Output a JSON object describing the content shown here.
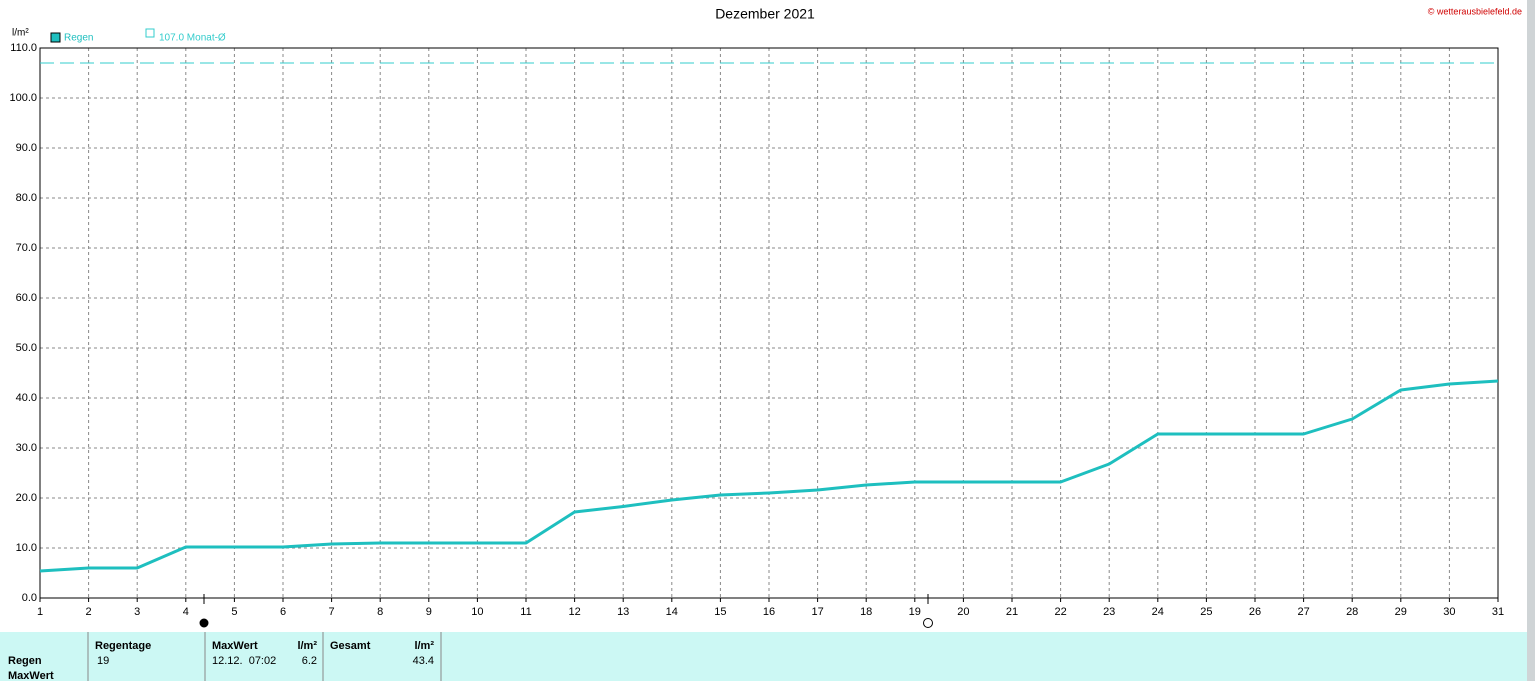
{
  "chart_data": {
    "type": "line",
    "title": "Dezember 2021",
    "y_label": "l/m²",
    "credit": "© wetterausbielefeld.de",
    "x": [
      1,
      2,
      3,
      4,
      5,
      6,
      7,
      8,
      9,
      10,
      11,
      12,
      13,
      14,
      15,
      16,
      17,
      18,
      19,
      20,
      21,
      22,
      23,
      24,
      25,
      26,
      27,
      28,
      29,
      30,
      31
    ],
    "series": [
      {
        "name": "Regen",
        "color": "#1ebfbf",
        "values": [
          5.4,
          6.0,
          6.0,
          10.2,
          10.2,
          10.2,
          10.8,
          11.0,
          11.0,
          11.0,
          11.0,
          17.2,
          18.3,
          19.6,
          20.6,
          21.0,
          21.6,
          22.6,
          23.2,
          23.2,
          23.2,
          23.2,
          26.8,
          32.8,
          32.8,
          32.8,
          32.8,
          35.8,
          41.6,
          42.8,
          43.4
        ]
      }
    ],
    "reference_line": {
      "value": 107,
      "label": "107.0 Monat-Ø",
      "color": "#33cccc"
    },
    "xlim": [
      1,
      31
    ],
    "xticks": [
      1,
      2,
      3,
      4,
      5,
      6,
      7,
      8,
      9,
      10,
      11,
      12,
      13,
      14,
      15,
      16,
      17,
      18,
      19,
      20,
      21,
      22,
      23,
      24,
      25,
      26,
      27,
      28,
      29,
      30,
      31
    ],
    "ylim": [
      0,
      110
    ],
    "yticks": [
      {
        "value": 0,
        "label": "0.0"
      },
      {
        "value": 10,
        "label": "10.0"
      },
      {
        "value": 20,
        "label": "20.0"
      },
      {
        "value": 30,
        "label": "30.0"
      },
      {
        "value": 40,
        "label": "40.0"
      },
      {
        "value": 50,
        "label": "50.0"
      },
      {
        "value": 60,
        "label": "60.0"
      },
      {
        "value": 70,
        "label": "70.0"
      },
      {
        "value": 80,
        "label": "80.0"
      },
      {
        "value": 90,
        "label": "90.0"
      },
      {
        "value": 100,
        "label": "100.0"
      },
      {
        "value": 110,
        "label": "110.0"
      }
    ],
    "grid": true
  },
  "table": {
    "headers": [
      "Regentage",
      "MaxWert",
      "l/m²",
      "Gesamt",
      "l/m²"
    ],
    "rows": [
      [
        "Regen",
        "19",
        "12.12.  07:02",
        "6.2",
        "43.4"
      ],
      [
        "MaxWert"
      ]
    ]
  }
}
